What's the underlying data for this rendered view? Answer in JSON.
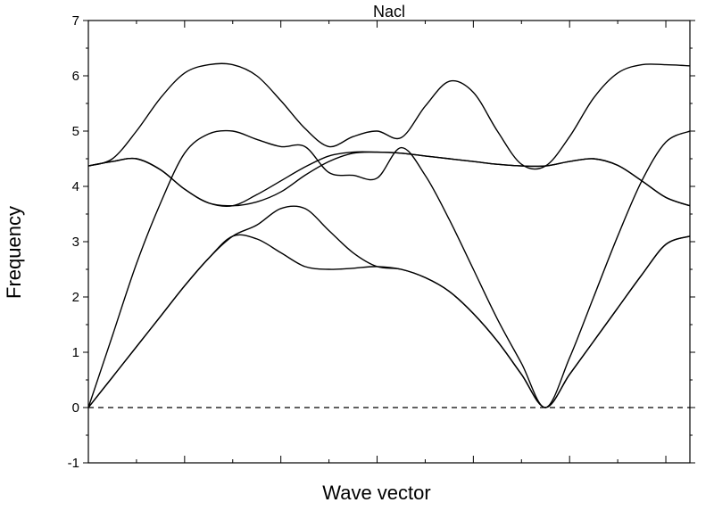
{
  "chart_data": {
    "type": "line",
    "title": "Nacl",
    "xlabel": "Wave vector",
    "ylabel": "Frequency",
    "xlim": [
      0,
      12.5
    ],
    "ylim": [
      -1,
      7
    ],
    "y_ticks": [
      "-1",
      "0",
      "1",
      "2",
      "3",
      "4",
      "5",
      "6",
      "7"
    ],
    "x_major_ticks": [
      0,
      2,
      4,
      6,
      8,
      10,
      12
    ],
    "x_minor_ticks": [
      1,
      3,
      5,
      7,
      9,
      11
    ],
    "x_tick_labels_shown": false,
    "grid": false,
    "legend": "none",
    "reference_line": {
      "y": 0,
      "style": "dashed"
    },
    "series": [
      {
        "x": [
          0,
          0.5,
          1,
          1.5,
          2,
          2.5,
          3,
          3.5,
          4,
          4.5,
          5,
          5.5,
          6,
          6.5,
          7,
          7.5,
          8,
          8.5,
          9,
          9.5,
          10,
          10.5,
          11,
          11.5,
          12,
          12.5
        ],
        "values": [
          0,
          0.55,
          1.1,
          1.65,
          2.2,
          2.7,
          3.1,
          3.05,
          2.8,
          2.55,
          2.5,
          2.52,
          2.55,
          2.5,
          2.35,
          2.1,
          1.7,
          1.2,
          0.6,
          0,
          0.6,
          1.2,
          1.8,
          2.4,
          2.95,
          3.1
        ]
      },
      {
        "x": [
          0,
          0.5,
          1,
          1.5,
          2,
          2.5,
          3,
          3.5,
          4,
          4.5,
          5,
          5.5,
          6,
          6.5,
          7,
          7.5,
          8,
          8.5,
          9,
          9.5,
          10,
          10.5,
          11,
          11.5,
          12,
          12.5
        ],
        "values": [
          0,
          0.55,
          1.1,
          1.65,
          2.2,
          2.7,
          3.1,
          3.3,
          3.6,
          3.6,
          3.2,
          2.8,
          2.55,
          2.5,
          2.35,
          2.1,
          1.7,
          1.2,
          0.6,
          0,
          0.6,
          1.2,
          1.8,
          2.4,
          2.95,
          3.1
        ]
      },
      {
        "x": [
          0,
          0.5,
          1,
          1.5,
          2,
          2.5,
          3,
          3.5,
          4,
          4.5,
          5,
          5.5,
          6,
          6.5,
          7,
          7.5,
          8,
          8.5,
          9,
          9.5,
          10,
          10.5,
          11,
          11.5,
          12,
          12.5
        ],
        "values": [
          0,
          1.3,
          2.6,
          3.7,
          4.6,
          4.95,
          5.0,
          4.85,
          4.72,
          4.72,
          4.25,
          4.2,
          4.15,
          4.7,
          4.2,
          3.4,
          2.5,
          1.6,
          0.8,
          0,
          0.9,
          2.0,
          3.1,
          4.1,
          4.8,
          5.0
        ]
      },
      {
        "x": [
          0,
          0.5,
          1,
          1.5,
          2,
          2.5,
          3,
          3.5,
          4,
          4.5,
          5,
          5.5,
          6,
          6.5,
          7,
          7.5,
          8,
          8.5,
          9,
          9.5,
          10,
          10.5,
          11,
          11.5,
          12,
          12.5
        ],
        "values": [
          4.37,
          4.45,
          4.5,
          4.3,
          3.95,
          3.7,
          3.65,
          3.72,
          3.9,
          4.2,
          4.45,
          4.6,
          4.62,
          4.6,
          4.55,
          4.5,
          4.45,
          4.4,
          4.37,
          4.37,
          4.45,
          4.5,
          4.38,
          4.1,
          3.8,
          3.65
        ]
      },
      {
        "x": [
          0,
          0.5,
          1,
          1.5,
          2,
          2.5,
          3,
          3.5,
          4,
          4.5,
          5,
          5.5,
          6,
          6.5,
          7,
          7.5,
          8,
          8.5,
          9,
          9.5,
          10,
          10.5,
          11,
          11.5,
          12,
          12.5
        ],
        "values": [
          4.37,
          4.45,
          4.5,
          4.3,
          3.95,
          3.7,
          3.65,
          3.85,
          4.1,
          4.35,
          4.55,
          4.62,
          4.62,
          4.6,
          4.55,
          4.5,
          4.45,
          4.4,
          4.37,
          4.37,
          4.45,
          4.5,
          4.38,
          4.1,
          3.8,
          3.65
        ]
      },
      {
        "x": [
          0,
          0.5,
          1,
          1.5,
          2,
          2.5,
          3,
          3.5,
          4,
          4.5,
          5,
          5.5,
          6,
          6.5,
          7,
          7.5,
          8,
          8.5,
          9,
          9.5,
          10,
          10.5,
          11,
          11.5,
          12,
          12.5
        ],
        "values": [
          4.37,
          4.5,
          5.0,
          5.6,
          6.05,
          6.2,
          6.2,
          6.0,
          5.55,
          5.05,
          4.72,
          4.9,
          5.0,
          4.88,
          5.45,
          5.9,
          5.7,
          5.0,
          4.4,
          4.37,
          4.9,
          5.6,
          6.05,
          6.2,
          6.2,
          6.18
        ]
      }
    ]
  }
}
